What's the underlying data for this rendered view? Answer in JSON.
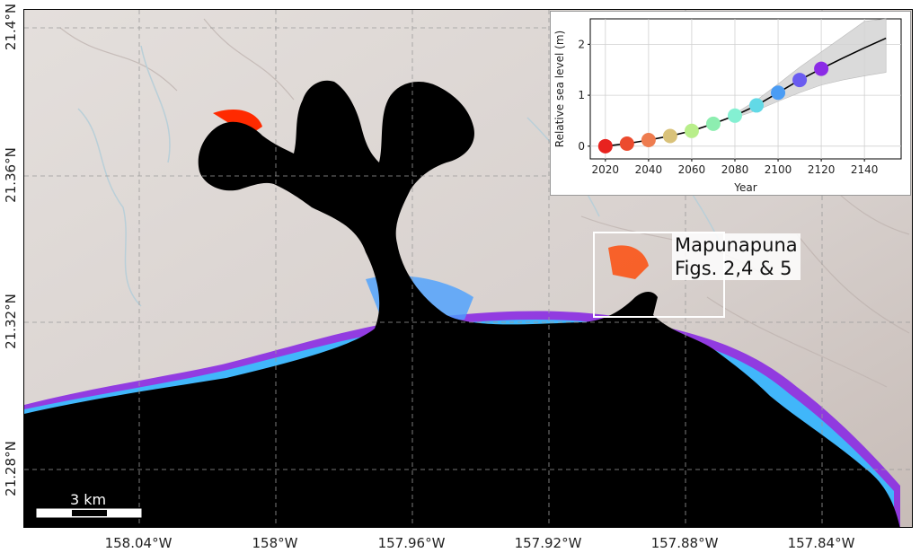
{
  "map": {
    "y_ticks": [
      "21.4°N",
      "21.36°N",
      "21.32°N",
      "21.28°N"
    ],
    "x_ticks": [
      "158.04°W",
      "158°W",
      "157.96°W",
      "157.92°W",
      "157.88°W",
      "157.84°W"
    ],
    "callout": {
      "line1": "Mapunapuna",
      "line2": "Figs. 2,4 & 5"
    },
    "scale_bar_label": "3 km",
    "colors": {
      "ocean": "#000000",
      "land": "#d8d2cf",
      "grid": "#9a9a9a",
      "flood_ramp": [
        "#ff2a00",
        "#ffd000",
        "#33ffcc",
        "#3399ff",
        "#8a2be2"
      ]
    }
  },
  "chart_data": {
    "type": "line",
    "xlabel": "Year",
    "ylabel": "Relative sea level (m)",
    "x_ticks": [
      2020,
      2040,
      2060,
      2080,
      2100,
      2120,
      2140
    ],
    "y_ticks": [
      0,
      1,
      2
    ],
    "xlim": [
      2013,
      2157
    ],
    "ylim": [
      -0.25,
      2.5
    ],
    "grid": true,
    "line": {
      "x": [
        2020,
        2030,
        2040,
        2050,
        2060,
        2070,
        2080,
        2090,
        2100,
        2110,
        2120,
        2130,
        2140,
        2150
      ],
      "y": [
        0.0,
        0.05,
        0.12,
        0.2,
        0.3,
        0.44,
        0.6,
        0.8,
        1.05,
        1.3,
        1.52,
        1.73,
        1.93,
        2.12
      ]
    },
    "band": {
      "x": [
        2080,
        2090,
        2100,
        2110,
        2120,
        2130,
        2140,
        2150
      ],
      "lower": [
        0.56,
        0.7,
        0.88,
        1.05,
        1.2,
        1.3,
        1.38,
        1.45
      ],
      "upper": [
        0.64,
        0.9,
        1.22,
        1.55,
        1.85,
        2.15,
        2.45,
        2.5
      ]
    },
    "points": {
      "x": [
        2020,
        2030,
        2040,
        2050,
        2060,
        2070,
        2080,
        2090,
        2100,
        2110,
        2120
      ],
      "y": [
        0.0,
        0.05,
        0.12,
        0.2,
        0.3,
        0.44,
        0.6,
        0.8,
        1.05,
        1.3,
        1.52
      ],
      "colors": [
        "#e8231f",
        "#ec4b2e",
        "#ee7c4f",
        "#d9c27a",
        "#b8ee8a",
        "#8deeb0",
        "#84f0d2",
        "#62d9e6",
        "#4a9cf4",
        "#6a5cf0",
        "#8b2be6"
      ]
    }
  }
}
